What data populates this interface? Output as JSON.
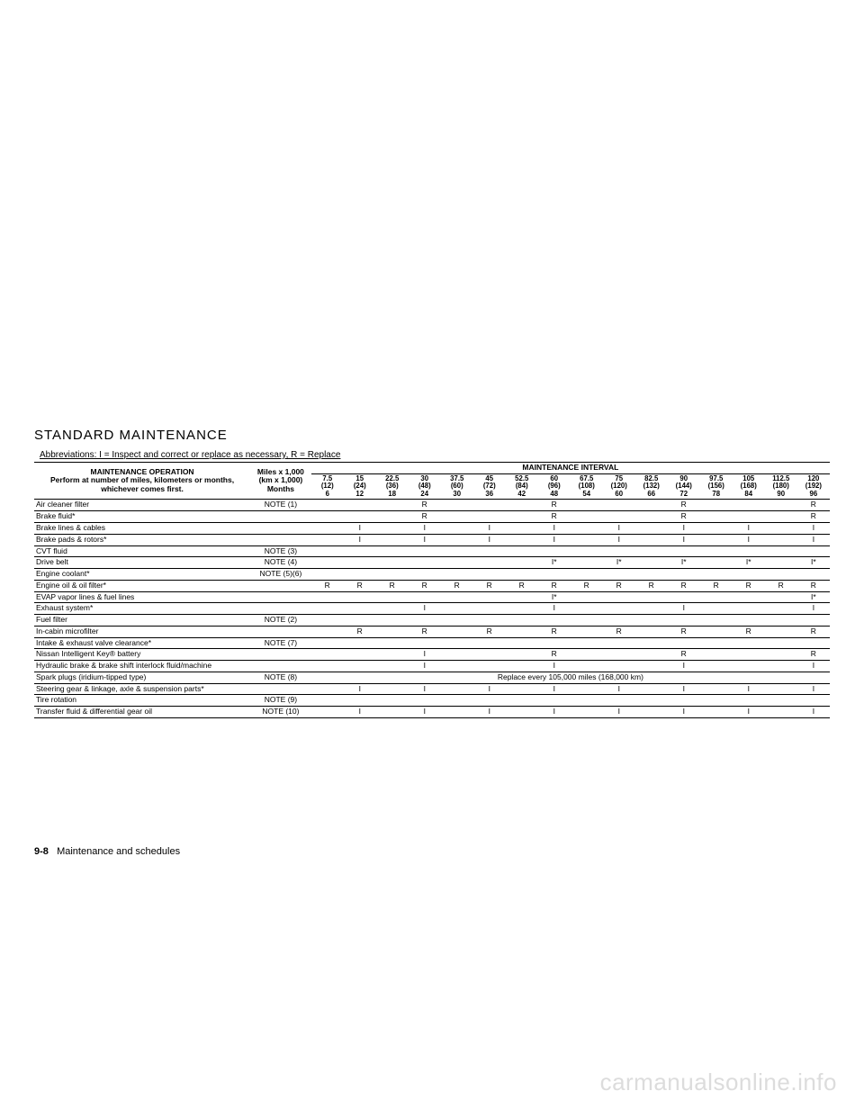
{
  "heading": "STANDARD MAINTENANCE",
  "abbrev": "Abbreviations: I = Inspect and correct or replace as necessary, R = Replace",
  "header": {
    "operation": "MAINTENANCE OPERATION\nPerform at number of miles, kilometers or months,\nwhichever comes first.",
    "miles": "Miles x 1,000\n(km x 1,000)\nMonths",
    "interval_label": "MAINTENANCE INTERVAL"
  },
  "intervals": [
    {
      "mi": "7.5",
      "km": "(12)",
      "mo": "6"
    },
    {
      "mi": "15",
      "km": "(24)",
      "mo": "12"
    },
    {
      "mi": "22.5",
      "km": "(36)",
      "mo": "18"
    },
    {
      "mi": "30",
      "km": "(48)",
      "mo": "24"
    },
    {
      "mi": "37.5",
      "km": "(60)",
      "mo": "30"
    },
    {
      "mi": "45",
      "km": "(72)",
      "mo": "36"
    },
    {
      "mi": "52.5",
      "km": "(84)",
      "mo": "42"
    },
    {
      "mi": "60",
      "km": "(96)",
      "mo": "48"
    },
    {
      "mi": "67.5",
      "km": "(108)",
      "mo": "54"
    },
    {
      "mi": "75",
      "km": "(120)",
      "mo": "60"
    },
    {
      "mi": "82.5",
      "km": "(132)",
      "mo": "66"
    },
    {
      "mi": "90",
      "km": "(144)",
      "mo": "72"
    },
    {
      "mi": "97.5",
      "km": "(156)",
      "mo": "78"
    },
    {
      "mi": "105",
      "km": "(168)",
      "mo": "84"
    },
    {
      "mi": "112.5",
      "km": "(180)",
      "mo": "90"
    },
    {
      "mi": "120",
      "km": "(192)",
      "mo": "96"
    }
  ],
  "rows": [
    {
      "op": "Air cleaner filter",
      "note": "NOTE (1)",
      "cells": [
        "",
        "",
        "",
        "R",
        "",
        "",
        "",
        "R",
        "",
        "",
        "",
        "R",
        "",
        "",
        "",
        "R"
      ]
    },
    {
      "op": "Brake fluid*",
      "note": "",
      "cells": [
        "",
        "",
        "",
        "R",
        "",
        "",
        "",
        "R",
        "",
        "",
        "",
        "R",
        "",
        "",
        "",
        "R"
      ]
    },
    {
      "op": "Brake lines & cables",
      "note": "",
      "cells": [
        "",
        "I",
        "",
        "I",
        "",
        "I",
        "",
        "I",
        "",
        "I",
        "",
        "I",
        "",
        "I",
        "",
        "I"
      ]
    },
    {
      "op": "Brake pads & rotors*",
      "note": "",
      "cells": [
        "",
        "I",
        "",
        "I",
        "",
        "I",
        "",
        "I",
        "",
        "I",
        "",
        "I",
        "",
        "I",
        "",
        "I"
      ]
    },
    {
      "op": "CVT fluid",
      "note": "NOTE (3)",
      "cells": [
        "",
        "",
        "",
        "",
        "",
        "",
        "",
        "",
        "",
        "",
        "",
        "",
        "",
        "",
        "",
        ""
      ]
    },
    {
      "op": "Drive belt",
      "note": "NOTE (4)",
      "cells": [
        "",
        "",
        "",
        "",
        "",
        "",
        "",
        "I*",
        "",
        "I*",
        "",
        "I*",
        "",
        "I*",
        "",
        "I*"
      ]
    },
    {
      "op": "Engine coolant*",
      "note": "NOTE (5)(6)",
      "cells": [
        "",
        "",
        "",
        "",
        "",
        "",
        "",
        "",
        "",
        "",
        "",
        "",
        "",
        "",
        "",
        ""
      ]
    },
    {
      "op": "Engine oil & oil filter*",
      "note": "",
      "cells": [
        "R",
        "R",
        "R",
        "R",
        "R",
        "R",
        "R",
        "R",
        "R",
        "R",
        "R",
        "R",
        "R",
        "R",
        "R",
        "R"
      ]
    },
    {
      "op": "EVAP vapor lines & fuel lines",
      "note": "",
      "cells": [
        "",
        "",
        "",
        "",
        "",
        "",
        "",
        "I*",
        "",
        "",
        "",
        "",
        "",
        "",
        "",
        "I*"
      ]
    },
    {
      "op": "Exhaust system*",
      "note": "",
      "cells": [
        "",
        "",
        "",
        "I",
        "",
        "",
        "",
        "I",
        "",
        "",
        "",
        "I",
        "",
        "",
        "",
        "I"
      ]
    },
    {
      "op": "Fuel filter",
      "note": "NOTE (2)",
      "cells": [
        "",
        "",
        "",
        "",
        "",
        "",
        "",
        "",
        "",
        "",
        "",
        "",
        "",
        "",
        "",
        ""
      ]
    },
    {
      "op": "In-cabin microfilter",
      "note": "",
      "cells": [
        "",
        "R",
        "",
        "R",
        "",
        "R",
        "",
        "R",
        "",
        "R",
        "",
        "R",
        "",
        "R",
        "",
        "R"
      ]
    },
    {
      "op": "Intake & exhaust valve clearance*",
      "note": "NOTE (7)",
      "cells": [
        "",
        "",
        "",
        "",
        "",
        "",
        "",
        "",
        "",
        "",
        "",
        "",
        "",
        "",
        "",
        ""
      ]
    },
    {
      "op": "Nissan Intelligent Key® battery",
      "note": "",
      "cells": [
        "",
        "",
        "",
        "I",
        "",
        "",
        "",
        "R",
        "",
        "",
        "",
        "R",
        "",
        "",
        "",
        "R"
      ]
    },
    {
      "op": "Hydraulic brake & brake shift interlock fluid/machine",
      "note": "",
      "cells": [
        "",
        "",
        "",
        "I",
        "",
        "",
        "",
        "I",
        "",
        "",
        "",
        "I",
        "",
        "",
        "",
        "I"
      ]
    },
    {
      "op": "Spark plugs (iridium-tipped type)",
      "note": "NOTE (8)",
      "span": "Replace every 105,000 miles (168,000 km)"
    },
    {
      "op": "Steering gear & linkage, axle & suspension parts*",
      "note": "",
      "cells": [
        "",
        "I",
        "",
        "I",
        "",
        "I",
        "",
        "I",
        "",
        "I",
        "",
        "I",
        "",
        "I",
        "",
        "I"
      ]
    },
    {
      "op": "Tire rotation",
      "note": "NOTE (9)",
      "cells": [
        "",
        "",
        "",
        "",
        "",
        "",
        "",
        "",
        "",
        "",
        "",
        "",
        "",
        "",
        "",
        ""
      ]
    },
    {
      "op": "Transfer fluid & differential gear oil",
      "note": "NOTE (10)",
      "cells": [
        "",
        "I",
        "",
        "I",
        "",
        "I",
        "",
        "I",
        "",
        "I",
        "",
        "I",
        "",
        "I",
        "",
        "I"
      ]
    }
  ],
  "footer": {
    "page": "9-8",
    "label": "Maintenance and schedules"
  },
  "watermark": "carmanualsonline.info",
  "colors": {
    "text": "#000000",
    "bg": "#ffffff",
    "border": "#000000",
    "watermark": "#dcdcdc"
  }
}
